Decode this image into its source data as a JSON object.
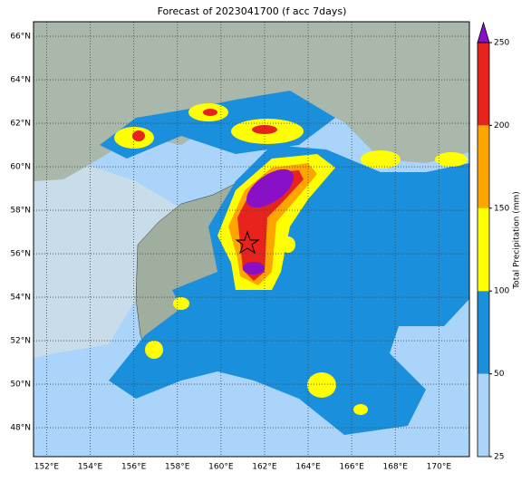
{
  "title": "Forecast of 2023041700 (f acc 7days)",
  "map": {
    "lon_lim": [
      151.4,
      171.4
    ],
    "lat_lim": [
      46.67,
      66.67
    ],
    "lon_ticks": [
      {
        "value": 152,
        "label": "152°E"
      },
      {
        "value": 154,
        "label": "154°E"
      },
      {
        "value": 156,
        "label": "156°E"
      },
      {
        "value": 158,
        "label": "158°E"
      },
      {
        "value": 160,
        "label": "160°E"
      },
      {
        "value": 162,
        "label": "162°E"
      },
      {
        "value": 164,
        "label": "164°E"
      },
      {
        "value": 166,
        "label": "166°E"
      },
      {
        "value": 168,
        "label": "168°E"
      },
      {
        "value": 170,
        "label": "170°E"
      }
    ],
    "lat_ticks": [
      {
        "value": 66,
        "label": "66°N"
      },
      {
        "value": 64,
        "label": "64°N"
      },
      {
        "value": 62,
        "label": "62°N"
      },
      {
        "value": 60,
        "label": "60°N"
      },
      {
        "value": 58,
        "label": "58°N"
      },
      {
        "value": 56,
        "label": "56°N"
      },
      {
        "value": 54,
        "label": "54°N"
      },
      {
        "value": 52,
        "label": "52°N"
      },
      {
        "value": 50,
        "label": "50°N"
      },
      {
        "value": 48,
        "label": "48°N"
      }
    ],
    "grid": true
  },
  "colorbar": {
    "label": "Total Precipitation (mm)",
    "levels": [
      25,
      50,
      100,
      150,
      200,
      250
    ],
    "colors": [
      "#aad4fa",
      "#1a8fdc",
      "#ffff00",
      "#ffa500",
      "#e8231e"
    ],
    "extend_color": "#8a10c8"
  }
}
